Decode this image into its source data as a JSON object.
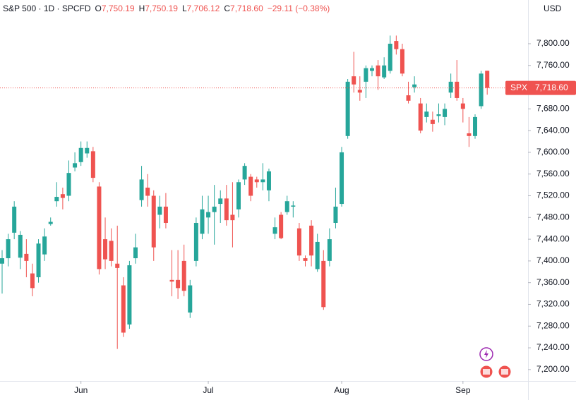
{
  "chart_data": {
    "type": "candlestick",
    "title": "S&P 500 · 1D · SPCFD",
    "ohlc_labels": [
      "O",
      "H",
      "L",
      "C"
    ],
    "ohlc_values": [
      "7,750.19",
      "7,750.19",
      "7,706.12",
      "7,718.60"
    ],
    "change": "−29.11 (−0.38%)",
    "currency": "USD",
    "symbol": "SPX",
    "last_price": {
      "value": 7718.6,
      "label": "7,718.60"
    },
    "up_color": "#26a69a",
    "down_color": "#ef5350",
    "ylim": [
      7179,
      7880.5
    ],
    "yticks": [
      {
        "value": 7200,
        "label": "7,200.00"
      },
      {
        "value": 7240,
        "label": "7,240.00"
      },
      {
        "value": 7280,
        "label": "7,280.00"
      },
      {
        "value": 7320,
        "label": "7,320.00"
      },
      {
        "value": 7360,
        "label": "7,360.00"
      },
      {
        "value": 7400,
        "label": "7,400.00"
      },
      {
        "value": 7440,
        "label": "7,440.00"
      },
      {
        "value": 7480,
        "label": "7,480.00"
      },
      {
        "value": 7520,
        "label": "7,520.00"
      },
      {
        "value": 7560,
        "label": "7,560.00"
      },
      {
        "value": 7600,
        "label": "7,600.00"
      },
      {
        "value": 7640,
        "label": "7,640.00"
      },
      {
        "value": 7680,
        "label": "7,680.00"
      },
      {
        "value": 7720,
        "label": "7,720.00"
      },
      {
        "value": 7760,
        "label": "7,760.00"
      },
      {
        "value": 7800,
        "label": "7,800.00"
      }
    ],
    "categories": [
      null,
      null,
      null,
      null,
      null,
      null,
      null,
      null,
      null,
      null,
      null,
      null,
      null,
      "Jun",
      null,
      null,
      null,
      null,
      null,
      null,
      null,
      null,
      null,
      null,
      null,
      null,
      null,
      null,
      null,
      null,
      null,
      null,
      null,
      null,
      "Jul",
      null,
      null,
      null,
      null,
      null,
      null,
      null,
      null,
      null,
      null,
      null,
      null,
      null,
      null,
      null,
      null,
      null,
      null,
      null,
      null,
      null,
      "Aug",
      null,
      null,
      null,
      null,
      null,
      null,
      null,
      null,
      null,
      null,
      null,
      null,
      null,
      null,
      null,
      null,
      null,
      null,
      null,
      "Sep",
      null,
      null,
      null,
      null
    ],
    "open": [
      7395,
      7405,
      7452,
      7406,
      7413,
      7377,
      7370,
      7412,
      7468,
      7510,
      7523,
      7520,
      7572,
      7582,
      7598,
      7602,
      7537,
      7440,
      7437,
      7395,
      7355,
      7283,
      7405,
      7512,
      7535,
      7520,
      7485,
      7500,
      7365,
      7365,
      7400,
      7305,
      7400,
      7450,
      7480,
      7490,
      7505,
      7515,
      7485,
      7495,
      7550,
      7555,
      7550,
      7545,
      7530,
      7450,
      7485,
      7490,
      7500,
      7460,
      7405,
      7465,
      7385,
      7400,
      7400,
      7470,
      7505,
      7630,
      7740,
      7715,
      7730,
      7750,
      7760,
      7738,
      7750,
      7805,
      7790,
      7705,
      7720,
      7690,
      7665,
      7660,
      7667,
      7665,
      7710,
      7730,
      7690,
      7635,
      7630,
      7685,
      7750.19
    ],
    "high": [
      7420,
      7450,
      7510,
      7455,
      7440,
      7395,
      7440,
      7460,
      7480,
      7545,
      7535,
      7585,
      7600,
      7620,
      7620,
      7610,
      7545,
      7480,
      7460,
      7465,
      7370,
      7400,
      7450,
      7575,
      7560,
      7530,
      7520,
      7525,
      7420,
      7420,
      7430,
      7365,
      7480,
      7520,
      7520,
      7540,
      7530,
      7540,
      7545,
      7550,
      7580,
      7560,
      7555,
      7580,
      7570,
      7480,
      7490,
      7520,
      7510,
      7470,
      7410,
      7475,
      7450,
      7420,
      7460,
      7535,
      7610,
      7735,
      7785,
      7740,
      7760,
      7760,
      7770,
      7775,
      7815,
      7815,
      7800,
      7730,
      7740,
      7700,
      7690,
      7675,
      7690,
      7690,
      7745,
      7770,
      7700,
      7665,
      7670,
      7750,
      7750.19
    ],
    "low": [
      7340,
      7390,
      7440,
      7385,
      7370,
      7335,
      7360,
      7400,
      7465,
      7500,
      7495,
      7510,
      7565,
      7575,
      7590,
      7545,
      7375,
      7385,
      7390,
      7238,
      7260,
      7275,
      7395,
      7500,
      7500,
      7400,
      7460,
      7460,
      7335,
      7330,
      7335,
      7295,
      7390,
      7440,
      7450,
      7430,
      7470,
      7465,
      7425,
      7480,
      7540,
      7510,
      7535,
      7530,
      7510,
      7440,
      7440,
      7485,
      7480,
      7400,
      7390,
      7390,
      7380,
      7310,
      7390,
      7460,
      7500,
      7625,
      7710,
      7695,
      7700,
      7740,
      7715,
      7735,
      7745,
      7780,
      7740,
      7690,
      7710,
      7635,
      7655,
      7638,
      7655,
      7650,
      7700,
      7695,
      7655,
      7610,
      7625,
      7680,
      7706.12
    ],
    "close": [
      7405,
      7440,
      7500,
      7448,
      7400,
      7350,
      7432,
      7445,
      7472,
      7518,
      7516,
      7562,
      7580,
      7608,
      7608,
      7553,
      7385,
      7403,
      7400,
      7387,
      7268,
      7392,
      7425,
      7550,
      7520,
      7425,
      7500,
      7470,
      7362,
      7350,
      7345,
      7355,
      7470,
      7495,
      7490,
      7500,
      7515,
      7475,
      7475,
      7545,
      7575,
      7520,
      7545,
      7550,
      7565,
      7462,
      7442,
      7510,
      7502,
      7410,
      7400,
      7410,
      7435,
      7315,
      7440,
      7500,
      7600,
      7730,
      7725,
      7710,
      7755,
      7755,
      7740,
      7760,
      7800,
      7790,
      7745,
      7695,
      7725,
      7640,
      7675,
      7652,
      7670,
      7680,
      7730,
      7700,
      7680,
      7630,
      7665,
      7745,
      7718.6
    ]
  }
}
